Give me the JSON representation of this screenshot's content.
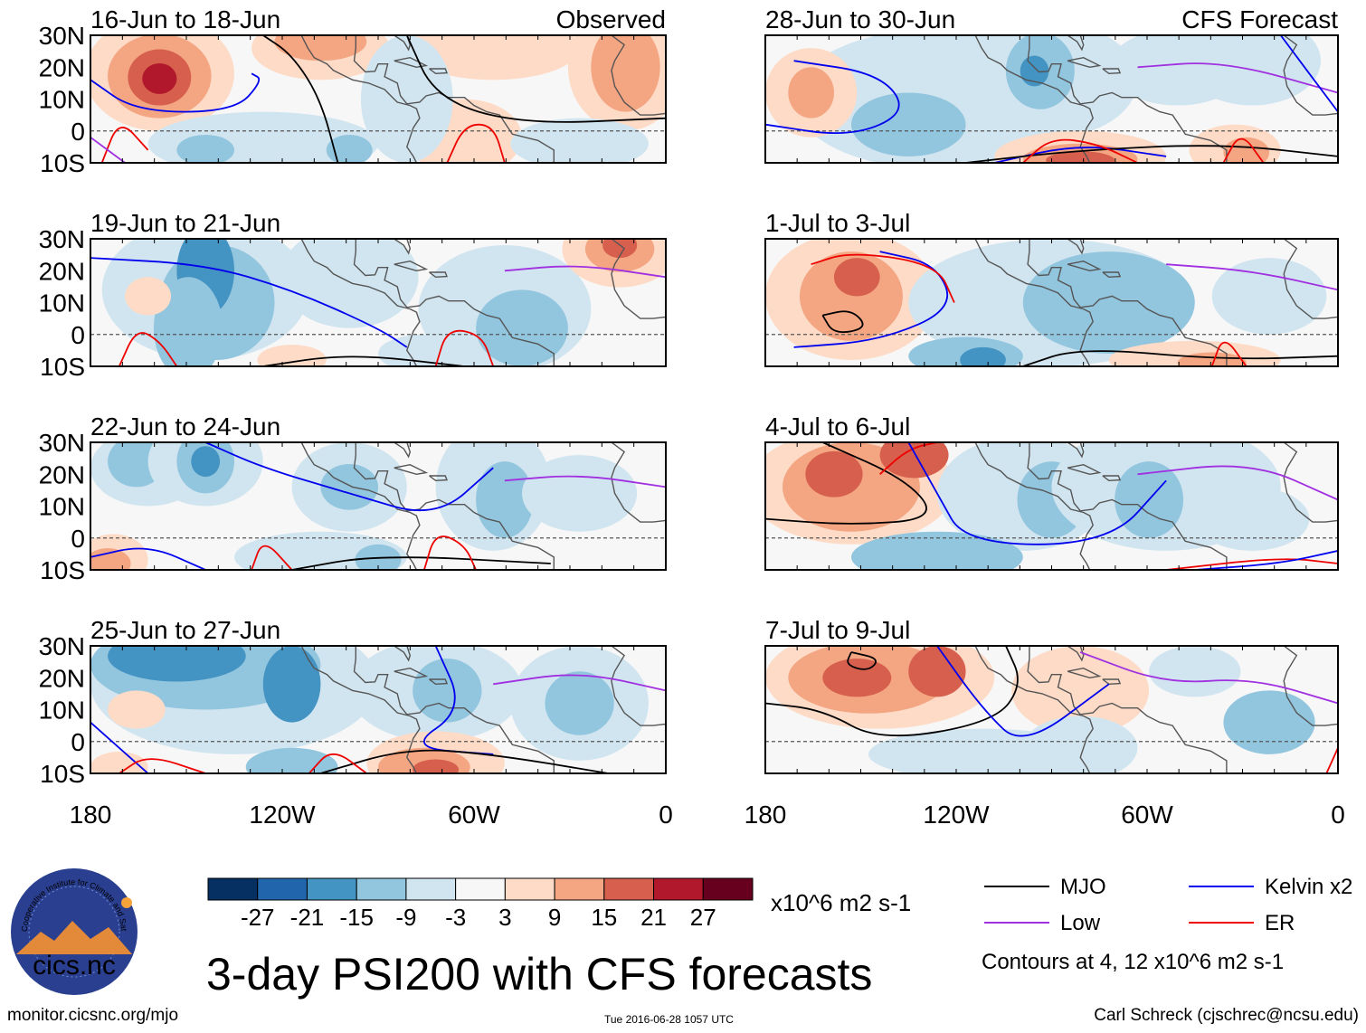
{
  "figure": {
    "title": "3-day PSI200 with CFS forecasts",
    "units": "x10^6 m2 s-1",
    "source_url": "monitor.cicsnc.org/mjo",
    "timestamp": "Tue 2016-06-28 1057 UTC",
    "author": "Carl Schreck (cjschrec@ncsu.edu)",
    "contour_note": "Contours at 4, 12 x10^6 m2 s-1",
    "logo_text": "cics.nc",
    "logo_ring_text": "Cooperative Institute for Climate and Satellites"
  },
  "axes": {
    "lat_labels": [
      "30N",
      "20N",
      "10N",
      "0",
      "10S"
    ],
    "lon_labels": [
      "180",
      "120W",
      "60W",
      "0"
    ]
  },
  "panels": [
    {
      "period": "16-Jun to 18-Jun",
      "tag": "Observed"
    },
    {
      "period": "19-Jun to 21-Jun",
      "tag": ""
    },
    {
      "period": "22-Jun to 24-Jun",
      "tag": ""
    },
    {
      "period": "25-Jun to 27-Jun",
      "tag": ""
    },
    {
      "period": "28-Jun to 30-Jun",
      "tag": "CFS Forecast"
    },
    {
      "period": "1-Jul to 3-Jul",
      "tag": ""
    },
    {
      "period": "4-Jul to 6-Jul",
      "tag": ""
    },
    {
      "period": "7-Jul to 9-Jul",
      "tag": ""
    }
  ],
  "colorbar": {
    "ticks": [
      "-27",
      "-21",
      "-15",
      "-9",
      "-3",
      "3",
      "9",
      "15",
      "21",
      "27"
    ],
    "colors": [
      "#053061",
      "#2166ac",
      "#4393c3",
      "#92c5de",
      "#d1e5f0",
      "#f7f7f7",
      "#fddbc7",
      "#f4a582",
      "#d6604d",
      "#b2182b",
      "#67001f"
    ]
  },
  "legend": [
    {
      "label": "MJO",
      "color": "#000000"
    },
    {
      "label": "Kelvin x2",
      "color": "#0000ee"
    },
    {
      "label": "Low",
      "color": "#a030e0"
    },
    {
      "label": "ER",
      "color": "#ee0000"
    }
  ],
  "colors": {
    "land_outline": "#555555",
    "equator_line": "#555555"
  }
}
